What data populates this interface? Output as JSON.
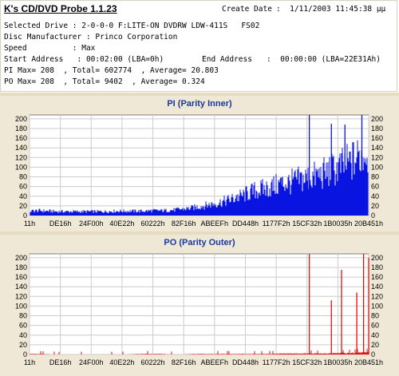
{
  "app_title": "K's CD/DVD Probe 1.1.23",
  "create_label": "Create Date",
  "create_value": ":  1/11/2003 11:45:38 µµ",
  "lines": [
    "Selected Drive : 2-0-0-0 F:LITE-ON DVDRW LDW-411S   FS02",
    "Disc Manufacturer : Princo Corporation",
    "Speed          : Max",
    "Start Address   : 00:02:00 (LBA=0h)",
    "PI Max= 208  , Total= 602774  , Average= 20.803",
    "PO Max= 208  , Total= 9402  , Average= 0.324"
  ],
  "end_label": "End Address",
  "end_value": ":  00:00:00 (LBA=22E31Ah)",
  "colors": {
    "pi": "#0a14e0",
    "po": "#e41010",
    "grid": "#cccccc"
  },
  "chart_data": [
    {
      "type": "area",
      "title": "PI (Parity Inner)",
      "x_tick_labels": [
        "11h",
        "DE16h",
        "24F00h",
        "40E22h",
        "60222h",
        "82F16h",
        "ABEEFh",
        "DD448h",
        "1177F2h",
        "15CF32h",
        "1B0035h",
        "20B451h"
      ],
      "y_ticks": [
        0,
        20,
        40,
        60,
        80,
        100,
        120,
        140,
        160,
        180,
        200
      ],
      "ylim": [
        0,
        208
      ],
      "grid": true,
      "series": [
        {
          "values": [
            10,
            11,
            10,
            9,
            9,
            9,
            9,
            9,
            9,
            10,
            10,
            10,
            10,
            11,
            11,
            12,
            14,
            16,
            20,
            24,
            28,
            34,
            40,
            48,
            56,
            60,
            66,
            72,
            76,
            82,
            86,
            92,
            100,
            108,
            118,
            132,
            148
          ]
        }
      ],
      "spikes": [
        [
          0.61,
          42
        ],
        [
          0.74,
          78
        ],
        [
          0.825,
          208
        ],
        [
          0.89,
          190
        ],
        [
          0.93,
          188
        ],
        [
          0.98,
          208
        ]
      ]
    },
    {
      "type": "area",
      "title": "PO (Parity Outer)",
      "x_tick_labels": [
        "11h",
        "DE16h",
        "24F00h",
        "40E22h",
        "60222h",
        "82F16h",
        "ABEEFh",
        "DD448h",
        "1177F2h",
        "15CF32h",
        "1B0035h",
        "20B451h"
      ],
      "y_ticks": [
        0,
        20,
        40,
        60,
        80,
        100,
        120,
        140,
        160,
        180,
        200
      ],
      "ylim": [
        0,
        208
      ],
      "grid": true,
      "series": [
        {
          "values": [
            1,
            1,
            0,
            0,
            0,
            0,
            0,
            0,
            0,
            0,
            1,
            1,
            1,
            0,
            0,
            1,
            1,
            1,
            1,
            1,
            1,
            1,
            1,
            2,
            2,
            2,
            2,
            2,
            3,
            3,
            4,
            5
          ]
        }
      ],
      "spikes": [
        [
          0.825,
          208
        ],
        [
          0.89,
          112
        ],
        [
          0.92,
          175
        ],
        [
          0.965,
          128
        ],
        [
          0.985,
          208
        ],
        [
          1.0,
          200
        ]
      ]
    }
  ]
}
